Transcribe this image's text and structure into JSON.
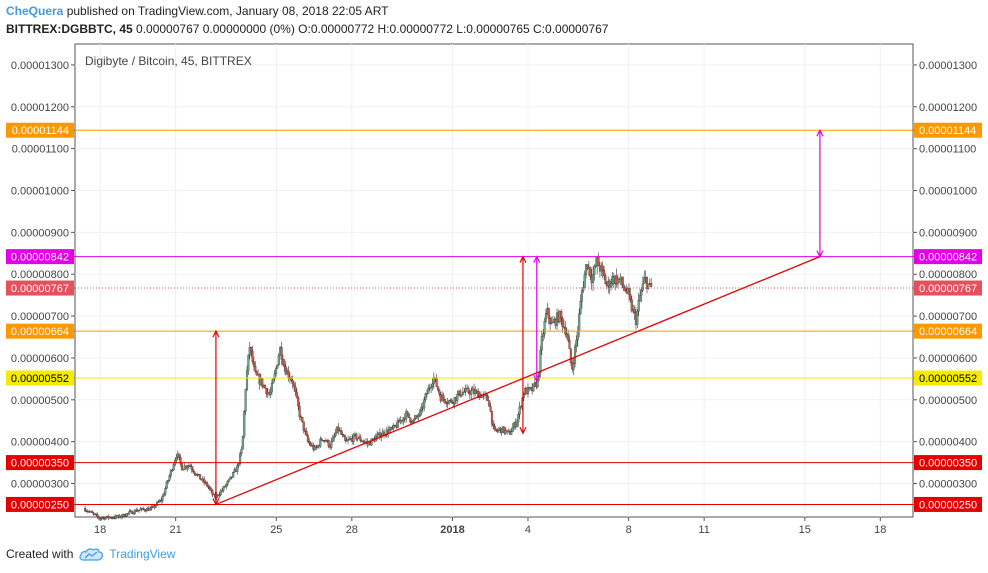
{
  "header": {
    "user": "CheQuera",
    "published_text": " published on TradingView.com, January 08, 2018 22:05 ART",
    "symbol": "BITTREX:DGBBTC, 45",
    "ohlc_text": "  0.00000767 0.00000000 (0%) O:0.00000772 H:0.00000772 L:0.00000765 C:0.00000767"
  },
  "chart_data": {
    "type": "candlestick",
    "title": "Digibyte / Bitcoin, 45, BITTREX",
    "ylim": [
      2.2e-06,
      1.35e-05
    ],
    "y_ticks": [
      "0.00000250",
      "0.00000300",
      "0.00000350",
      "0.00000400",
      "0.00000500",
      "0.00000552",
      "0.00000600",
      "0.00000664",
      "0.00000700",
      "0.00000767",
      "0.00000800",
      "0.00000842",
      "0.00000900",
      "0.00001000",
      "0.00001100",
      "0.00001144",
      "0.00001200",
      "0.00001300"
    ],
    "x_ticks": [
      {
        "label": "18",
        "day": 0,
        "bold": false
      },
      {
        "label": "21",
        "day": 3,
        "bold": false
      },
      {
        "label": "25",
        "day": 7,
        "bold": false
      },
      {
        "label": "28",
        "day": 10,
        "bold": false
      },
      {
        "label": "2018",
        "day": 14,
        "bold": true
      },
      {
        "label": "4",
        "day": 17,
        "bold": false
      },
      {
        "label": "8",
        "day": 21,
        "bold": false
      },
      {
        "label": "11",
        "day": 24,
        "bold": false
      },
      {
        "label": "15",
        "day": 28,
        "bold": false
      },
      {
        "label": "18",
        "day": 31,
        "bold": false
      }
    ],
    "x_range_days": [
      -1.0,
      32.3
    ],
    "price_series": [
      [
        -0.6,
        2.41e-06
      ],
      [
        0.0,
        2.18e-06
      ],
      [
        0.8,
        2.2e-06
      ],
      [
        1.5,
        2.36e-06
      ],
      [
        2.1,
        2.4e-06
      ],
      [
        2.5,
        2.62e-06
      ],
      [
        2.9,
        3.35e-06
      ],
      [
        3.1,
        3.72e-06
      ],
      [
        3.3,
        3.38e-06
      ],
      [
        3.6,
        3.45e-06
      ],
      [
        3.9,
        3.2e-06
      ],
      [
        4.3,
        2.96e-06
      ],
      [
        4.6,
        2.66e-06
      ],
      [
        4.9,
        2.84e-06
      ],
      [
        5.2,
        3.08e-06
      ],
      [
        5.5,
        3.38e-06
      ],
      [
        5.7,
        3.85e-06
      ],
      [
        5.85,
        5.45e-06
      ],
      [
        6.0,
        6.28e-06
      ],
      [
        6.2,
        5.6e-06
      ],
      [
        6.5,
        5.38e-06
      ],
      [
        6.8,
        5.1e-06
      ],
      [
        7.0,
        5.6e-06
      ],
      [
        7.2,
        6.25e-06
      ],
      [
        7.4,
        5.75e-06
      ],
      [
        7.7,
        5.45e-06
      ],
      [
        8.0,
        4.6e-06
      ],
      [
        8.3,
        4e-06
      ],
      [
        8.6,
        3.8e-06
      ],
      [
        8.9,
        4.1e-06
      ],
      [
        9.2,
        3.9e-06
      ],
      [
        9.5,
        4.32e-06
      ],
      [
        9.8,
        3.98e-06
      ],
      [
        10.2,
        4.12e-06
      ],
      [
        10.7,
        3.95e-06
      ],
      [
        11.2,
        4.18e-06
      ],
      [
        11.7,
        4.3e-06
      ],
      [
        12.2,
        4.65e-06
      ],
      [
        12.5,
        4.48e-06
      ],
      [
        12.8,
        4.7e-06
      ],
      [
        13.0,
        5.1e-06
      ],
      [
        13.3,
        5.55e-06
      ],
      [
        13.6,
        5.05e-06
      ],
      [
        14.0,
        4.95e-06
      ],
      [
        14.4,
        5.18e-06
      ],
      [
        14.8,
        5.2e-06
      ],
      [
        15.2,
        5.12e-06
      ],
      [
        15.5,
        4.98e-06
      ],
      [
        15.7,
        4.22e-06
      ],
      [
        16.0,
        4.3e-06
      ],
      [
        16.3,
        4.18e-06
      ],
      [
        16.6,
        4.48e-06
      ],
      [
        16.9,
        5.2e-06
      ],
      [
        17.2,
        5.22e-06
      ],
      [
        17.45,
        5.45e-06
      ],
      [
        17.6,
        6.4e-06
      ],
      [
        17.8,
        7.12e-06
      ],
      [
        18.0,
        6.78e-06
      ],
      [
        18.3,
        7.02e-06
      ],
      [
        18.6,
        6.6e-06
      ],
      [
        18.8,
        5.7e-06
      ],
      [
        19.0,
        6.5e-06
      ],
      [
        19.2,
        7.6e-06
      ],
      [
        19.4,
        8.3e-06
      ],
      [
        19.6,
        7.9e-06
      ],
      [
        19.8,
        8.3e-06
      ],
      [
        20.0,
        8.05e-06
      ],
      [
        20.2,
        7.7e-06
      ],
      [
        20.4,
        7.9e-06
      ],
      [
        20.7,
        7.85e-06
      ],
      [
        21.0,
        7.55e-06
      ],
      [
        21.2,
        7.15e-06
      ],
      [
        21.35,
        6.9e-06
      ],
      [
        21.5,
        7.45e-06
      ],
      [
        21.7,
        7.9e-06
      ],
      [
        21.9,
        7.67e-06
      ]
    ],
    "levels": [
      {
        "value": 1.144e-05,
        "label": "0.00001144",
        "color": "#ff9800",
        "text_color": "#ffffff"
      },
      {
        "value": 8.42e-06,
        "label": "0.00000842",
        "color": "#e100e8",
        "text_color": "#ffffff"
      },
      {
        "value": 7.67e-06,
        "label": "0.00000767",
        "color": "#e5505d",
        "text_color": "#ffffff",
        "dotted": true
      },
      {
        "value": 6.64e-06,
        "label": "0.00000664",
        "color": "#ff9800",
        "text_color": "#ffffff"
      },
      {
        "value": 5.52e-06,
        "label": "0.00000552",
        "color": "#f5ea00",
        "text_color": "#000000"
      },
      {
        "value": 3.5e-06,
        "label": "0.00000350",
        "color": "#e50000",
        "text_color": "#ffffff"
      },
      {
        "value": 2.5e-06,
        "label": "0.00000250",
        "color": "#e50000",
        "text_color": "#ffffff"
      }
    ],
    "trendline": {
      "from": [
        4.6,
        2.5e-06
      ],
      "to": [
        28.6,
        8.42e-06
      ],
      "color": "#e50000"
    },
    "arrows": [
      {
        "day": 4.6,
        "y1": 2.5e-06,
        "y2": 6.64e-06,
        "color": "#e50000"
      },
      {
        "day": 16.8,
        "y1": 4.2e-06,
        "y2": 8.42e-06,
        "color": "#e50000"
      },
      {
        "day": 17.35,
        "y1": 5.45e-06,
        "y2": 8.42e-06,
        "color": "#e100e8"
      },
      {
        "day": 28.6,
        "y1": 8.42e-06,
        "y2": 1.144e-05,
        "color": "#e100e8"
      }
    ]
  },
  "footer": {
    "created_with": "Created with",
    "brand": "TradingView"
  }
}
